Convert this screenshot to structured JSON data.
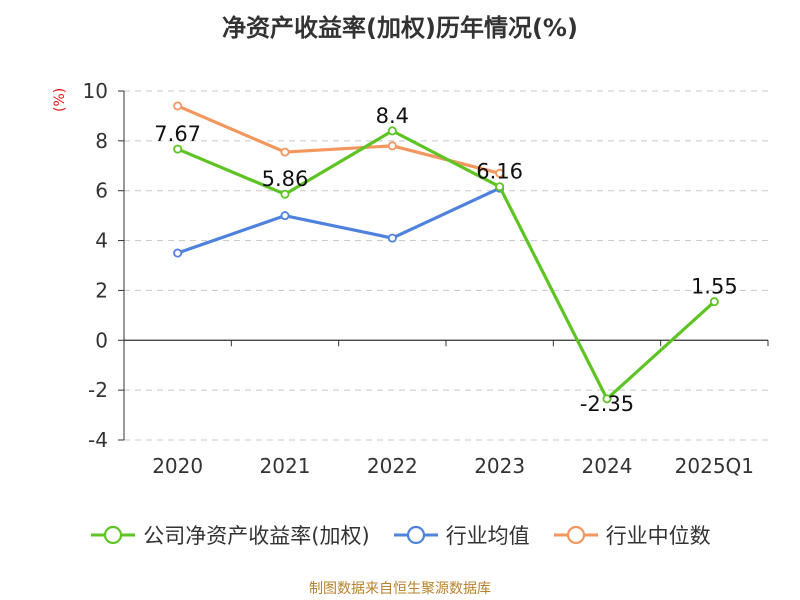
{
  "chart_data": {
    "type": "line",
    "title": "净资产收益率(加权)历年情况(%)",
    "ylabel": "(%)",
    "xlabel": "",
    "categories": [
      "2020",
      "2021",
      "2022",
      "2023",
      "2024",
      "2025Q1"
    ],
    "ylim": [
      -4,
      10
    ],
    "yticks": [
      -4,
      -2,
      0,
      2,
      4,
      6,
      8,
      10
    ],
    "ytick_labels": [
      "-4",
      "-2",
      "0",
      "2",
      "4",
      "6",
      "8",
      "10"
    ],
    "grid": "horizontal dashed",
    "legend_position": "bottom",
    "series": [
      {
        "name": "公司净资产收益率(加权)",
        "color": "#5ec424",
        "values": [
          7.67,
          5.86,
          8.4,
          6.16,
          -2.35,
          1.55
        ],
        "labels": [
          "7.67",
          "5.86",
          "8.4",
          "6.16",
          "-2.35",
          "1.55"
        ]
      },
      {
        "name": "行业均值",
        "color": "#4f82dd",
        "values": [
          3.5,
          5.0,
          4.1,
          6.1,
          null,
          null
        ]
      },
      {
        "name": "行业中位数",
        "color": "#f4975f",
        "values": [
          9.4,
          7.55,
          7.8,
          6.7,
          null,
          null
        ]
      }
    ]
  },
  "footer": {
    "source": "制图数据来自恒生聚源数据库"
  }
}
